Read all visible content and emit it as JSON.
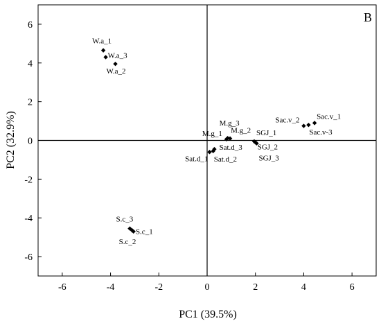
{
  "chart_data": {
    "type": "scatter",
    "panel_label": "B",
    "xlabel": "PC1 (39.5%)",
    "ylabel": "PC2 (32.9%)",
    "xlim": [
      -7,
      7
    ],
    "ylim": [
      -7,
      7
    ],
    "xticks": [
      -6,
      -4,
      -2,
      0,
      2,
      4,
      6
    ],
    "yticks": [
      -6,
      -4,
      -2,
      0,
      2,
      4,
      6
    ],
    "xtick_labels": [
      "-6",
      "-4",
      "-2",
      "0",
      "2",
      "4",
      "6"
    ],
    "ytick_labels": [
      "-6",
      "-4",
      "-2",
      "0",
      "2",
      "4",
      "6"
    ],
    "reference_lines": {
      "x": 0,
      "y": 0
    },
    "grid": false,
    "legend": "none",
    "marker": "diamond",
    "marker_color": "#000000",
    "points": [
      {
        "label": "W.a_1",
        "x": -4.3,
        "y": 4.65
      },
      {
        "label": "W.a_3",
        "x": -4.2,
        "y": 4.3
      },
      {
        "label": "W.a_2",
        "x": -3.8,
        "y": 3.95
      },
      {
        "label": "M.g_3",
        "x": 0.85,
        "y": 0.12
      },
      {
        "label": "M.g_1",
        "x": 0.8,
        "y": 0.06
      },
      {
        "label": "M.g_2",
        "x": 0.95,
        "y": 0.1
      },
      {
        "label": "SGJ_1",
        "x": 1.95,
        "y": -0.05
      },
      {
        "label": "SGJ_2",
        "x": 2.0,
        "y": -0.1
      },
      {
        "label": "SGJ_3",
        "x": 2.05,
        "y": -0.15
      },
      {
        "label": "Sat.d_3",
        "x": 0.3,
        "y": -0.45
      },
      {
        "label": "Sat.d_1",
        "x": 0.1,
        "y": -0.6
      },
      {
        "label": "Sat.d_2",
        "x": 0.25,
        "y": -0.55
      },
      {
        "label": "Sac.v_1",
        "x": 4.45,
        "y": 0.9
      },
      {
        "label": "Sac.v_2",
        "x": 4.0,
        "y": 0.75
      },
      {
        "label": "Sac.v-3",
        "x": 4.2,
        "y": 0.8
      },
      {
        "label": "S.c_3",
        "x": -3.2,
        "y": -4.55
      },
      {
        "label": "S.c_1",
        "x": -3.1,
        "y": -4.65
      },
      {
        "label": "S.c_2",
        "x": -3.05,
        "y": -4.7
      }
    ]
  }
}
